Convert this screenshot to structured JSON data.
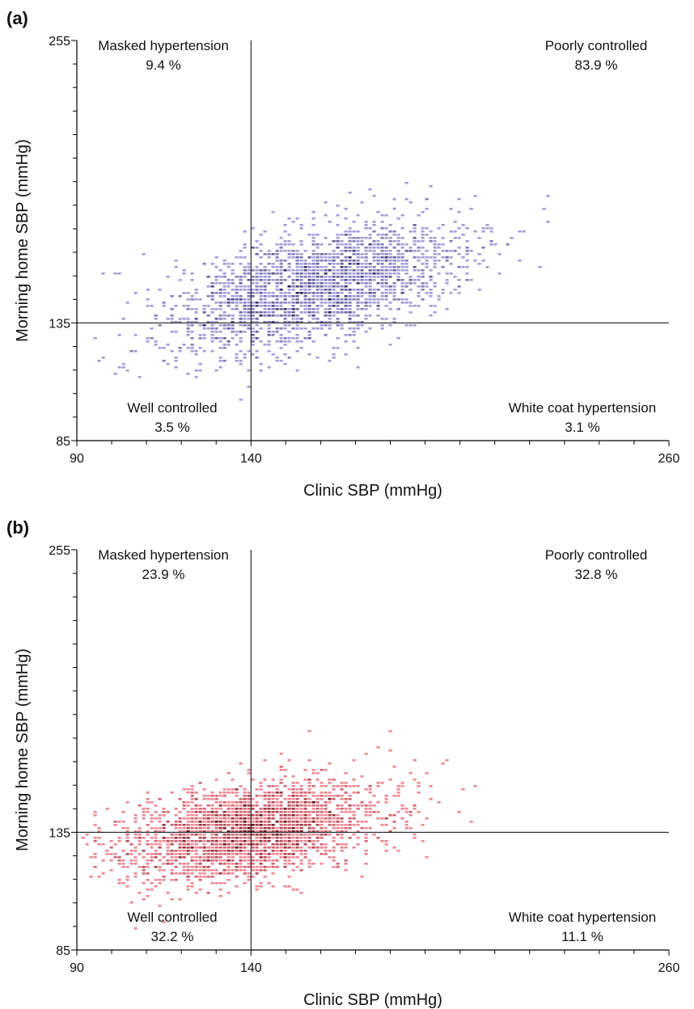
{
  "chart_data": [
    {
      "type": "scatter",
      "panel_label": "(a)",
      "xlabel": "Clinic SBP (mmHg)",
      "ylabel": "Morning home SBP (mmHg)",
      "xlim": [
        90,
        260
      ],
      "ylim": [
        85,
        255
      ],
      "xticks": [
        90,
        140,
        260
      ],
      "yticks": [
        85,
        135,
        255
      ],
      "thresholds": {
        "x": 140,
        "y": 135
      },
      "color": "#5a4fb8",
      "quadrants": {
        "top_left": {
          "name": "Masked hypertension",
          "pct": "9.4 %"
        },
        "top_right": {
          "name": "Poorly controlled",
          "pct": "83.9 %"
        },
        "bottom_left": {
          "name": "Well controlled",
          "pct": "3.5 %"
        },
        "bottom_right": {
          "name": "White coat hypertension",
          "pct": "3.1 %"
        }
      },
      "distribution": {
        "center_x": 158,
        "center_y": 150,
        "sd_x": 19,
        "sd_y": 14,
        "correlation": 0.55,
        "n": 2200
      }
    },
    {
      "type": "scatter",
      "panel_label": "(b)",
      "xlabel": "Clinic SBP (mmHg)",
      "ylabel": "Morning home SBP (mmHg)",
      "xlim": [
        90,
        260
      ],
      "ylim": [
        85,
        255
      ],
      "xticks": [
        90,
        140,
        260
      ],
      "yticks": [
        85,
        135,
        255
      ],
      "thresholds": {
        "x": 140,
        "y": 135
      },
      "color": "#e0283c",
      "quadrants": {
        "top_left": {
          "name": "Masked hypertension",
          "pct": "23.9 %"
        },
        "top_right": {
          "name": "Poorly controlled",
          "pct": "32.8 %"
        },
        "bottom_left": {
          "name": "Well controlled",
          "pct": "32.2 %"
        },
        "bottom_right": {
          "name": "White coat hypertension",
          "pct": "11.1 %"
        }
      },
      "distribution": {
        "center_x": 140,
        "center_y": 136,
        "sd_x": 17,
        "sd_y": 11,
        "correlation": 0.4,
        "n": 2400
      }
    }
  ]
}
